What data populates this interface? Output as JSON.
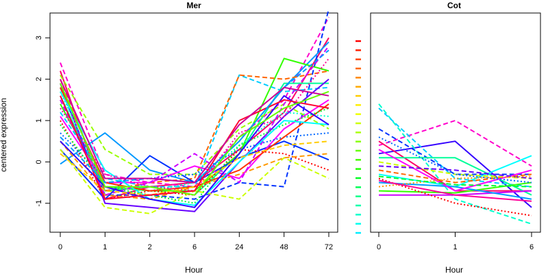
{
  "figure": {
    "ylabel": "centered expression",
    "line_styles": [
      "solid",
      "dashed",
      "dotted"
    ]
  },
  "chart_data": [
    {
      "type": "line",
      "title": "Mer",
      "xlabel": "Hour",
      "ylabel": "centered expression",
      "categories": [
        "0",
        "1",
        "2",
        "6",
        "24",
        "48",
        "72"
      ],
      "ylim": [
        -1.7,
        3.6
      ],
      "yticks": [
        -1,
        0,
        1,
        2,
        3
      ],
      "grid": false,
      "legend": "none",
      "series": [
        {
          "color": "#ff0066",
          "style": "solid",
          "values": [
            2.2,
            -0.9,
            -0.6,
            -0.5,
            0.3,
            1.2,
            3.0
          ]
        },
        {
          "color": "#ff00cc",
          "style": "dashed",
          "values": [
            2.4,
            -0.3,
            -0.5,
            -0.6,
            0.6,
            1.5,
            3.5
          ]
        },
        {
          "color": "#0033ff",
          "style": "dashed",
          "values": [
            1.8,
            -0.8,
            -0.8,
            -0.9,
            -0.5,
            -0.6,
            3.7
          ]
        },
        {
          "color": "#00ff99",
          "style": "solid",
          "values": [
            1.6,
            -0.7,
            -0.6,
            -0.8,
            0.2,
            1.9,
            1.9
          ]
        },
        {
          "color": "#0099ff",
          "style": "solid",
          "values": [
            -0.05,
            0.7,
            -0.2,
            -0.5,
            0.5,
            1.8,
            2.9
          ]
        },
        {
          "color": "#33ff00",
          "style": "solid",
          "values": [
            1.4,
            -0.6,
            -0.7,
            -0.7,
            0.2,
            2.5,
            2.2
          ]
        },
        {
          "color": "#00ccff",
          "style": "dashed",
          "values": [
            1.2,
            -0.4,
            -0.6,
            -0.6,
            2.1,
            1.7,
            1.8
          ]
        },
        {
          "color": "#ff6600",
          "style": "dashed",
          "values": [
            2.0,
            -0.7,
            -0.5,
            -0.4,
            2.1,
            2.0,
            2.2
          ]
        },
        {
          "color": "#0033ff",
          "style": "solid",
          "values": [
            0.3,
            -0.9,
            0.15,
            -0.5,
            0.1,
            0.5,
            0.05
          ]
        },
        {
          "color": "#6600ff",
          "style": "solid",
          "values": [
            1.9,
            -1.0,
            -1.1,
            -1.2,
            0.0,
            1.1,
            2.0
          ]
        },
        {
          "color": "#ff0000",
          "style": "dotted",
          "values": [
            1.0,
            -0.9,
            -0.7,
            -0.8,
            0.3,
            0.2,
            -0.2
          ]
        },
        {
          "color": "#ccff00",
          "style": "dashed",
          "values": [
            0.3,
            -1.1,
            -1.25,
            -0.7,
            -0.9,
            0.1,
            -0.4
          ]
        },
        {
          "color": "#ff9900",
          "style": "dashed",
          "values": [
            0.5,
            -0.8,
            -0.9,
            -0.6,
            -0.3,
            0.1,
            0.2
          ]
        },
        {
          "color": "#00ffcc",
          "style": "dotted",
          "values": [
            1.7,
            -0.6,
            -0.7,
            -0.5,
            0.4,
            1.2,
            1.1
          ]
        },
        {
          "color": "#99ff00",
          "style": "dashed",
          "values": [
            2.1,
            0.3,
            -0.3,
            -0.3,
            0.8,
            1.4,
            0.8
          ]
        },
        {
          "color": "#ff00ff",
          "style": "solid",
          "values": [
            1.1,
            -0.5,
            -0.5,
            -0.1,
            -0.4,
            0.8,
            1.5
          ]
        },
        {
          "color": "#0066ff",
          "style": "dotted",
          "values": [
            0.7,
            -0.4,
            -0.4,
            -0.3,
            0.3,
            0.6,
            0.7
          ]
        },
        {
          "color": "#ff3300",
          "style": "solid",
          "values": [
            1.8,
            -0.5,
            -0.7,
            -0.6,
            -0.2,
            0.6,
            1.4
          ]
        },
        {
          "color": "#00ff33",
          "style": "dotted",
          "values": [
            0.9,
            -0.6,
            -0.8,
            -1.0,
            0.4,
            0.9,
            1.3
          ]
        },
        {
          "color": "#cc00ff",
          "style": "dashed",
          "values": [
            1.5,
            -0.8,
            -0.5,
            0.2,
            -0.5,
            1.4,
            2.8
          ]
        },
        {
          "color": "#00ffff",
          "style": "solid",
          "values": [
            1.7,
            -0.2,
            -0.9,
            -1.05,
            0.0,
            1.0,
            0.9
          ]
        },
        {
          "color": "#ff0099",
          "style": "dotted",
          "values": [
            1.3,
            -0.3,
            -0.6,
            -0.7,
            0.7,
            1.1,
            2.5
          ]
        },
        {
          "color": "#3300ff",
          "style": "solid",
          "values": [
            0.5,
            -0.6,
            -0.9,
            -1.1,
            0.2,
            1.6,
            0.9
          ]
        },
        {
          "color": "#ffcc00",
          "style": "dashed",
          "values": [
            0.2,
            -0.7,
            -0.8,
            -0.6,
            0.1,
            0.4,
            0.5
          ]
        },
        {
          "color": "#ff0033",
          "style": "solid",
          "values": [
            1.6,
            -0.9,
            -0.8,
            -0.7,
            1.0,
            1.5,
            1.3
          ]
        },
        {
          "color": "#0099ff",
          "style": "dashed",
          "values": [
            0.6,
            -0.5,
            -0.4,
            -0.5,
            0.5,
            1.8,
            2.7
          ]
        },
        {
          "color": "#66ff00",
          "style": "solid",
          "values": [
            1.9,
            -0.6,
            -0.6,
            -0.8,
            0.6,
            1.3,
            1.7
          ]
        },
        {
          "color": "#cc0099",
          "style": "solid",
          "values": [
            2.0,
            -0.4,
            -0.4,
            -0.5,
            0.9,
            1.8,
            1.6
          ]
        }
      ]
    },
    {
      "type": "line",
      "title": "Cot",
      "xlabel": "Hour",
      "ylabel": "",
      "categories": [
        "0",
        "1",
        "6"
      ],
      "ylim": [
        -1.7,
        3.6
      ],
      "yticks": [],
      "grid": false,
      "legend": "none",
      "series": [
        {
          "color": "#ff00cc",
          "style": "dashed",
          "values": [
            0.4,
            1.0,
            -0.1
          ]
        },
        {
          "color": "#3300ff",
          "style": "solid",
          "values": [
            0.2,
            0.5,
            -1.1
          ]
        },
        {
          "color": "#00ffcc",
          "style": "dashed",
          "values": [
            1.4,
            -0.9,
            -1.5
          ]
        },
        {
          "color": "#00ccff",
          "style": "dashed",
          "values": [
            1.3,
            -0.4,
            -0.6
          ]
        },
        {
          "color": "#0033ff",
          "style": "dashed",
          "values": [
            0.8,
            -0.3,
            -0.3
          ]
        },
        {
          "color": "#ff0066",
          "style": "solid",
          "values": [
            0.5,
            -0.7,
            -0.7
          ]
        },
        {
          "color": "#00ff99",
          "style": "solid",
          "values": [
            0.1,
            0.1,
            -0.8
          ]
        },
        {
          "color": "#33ff00",
          "style": "solid",
          "values": [
            -0.7,
            -0.75,
            -0.5
          ]
        },
        {
          "color": "#00ffff",
          "style": "solid",
          "values": [
            -0.3,
            -0.6,
            0.15
          ]
        },
        {
          "color": "#ff6600",
          "style": "dashed",
          "values": [
            -0.2,
            -0.5,
            -0.3
          ]
        },
        {
          "color": "#cc00ff",
          "style": "solid",
          "values": [
            -0.8,
            -0.8,
            -0.7
          ]
        },
        {
          "color": "#ff0000",
          "style": "dotted",
          "values": [
            -0.4,
            -1.0,
            -1.3
          ]
        },
        {
          "color": "#ccff00",
          "style": "dashed",
          "values": [
            0.0,
            -0.3,
            -0.4
          ]
        },
        {
          "color": "#0099ff",
          "style": "solid",
          "values": [
            -0.5,
            -0.6,
            -0.9
          ]
        },
        {
          "color": "#ff00ff",
          "style": "solid",
          "values": [
            0.3,
            -0.7,
            -0.2
          ]
        },
        {
          "color": "#6600ff",
          "style": "dashed",
          "values": [
            -0.1,
            -0.2,
            -0.4
          ]
        },
        {
          "color": "#ff9900",
          "style": "dotted",
          "values": [
            -0.6,
            -0.4,
            -0.35
          ]
        },
        {
          "color": "#00ff33",
          "style": "dashed",
          "values": [
            -0.35,
            -0.55,
            -0.6
          ]
        },
        {
          "color": "#ff0099",
          "style": "solid",
          "values": [
            -0.45,
            -0.8,
            -0.95
          ]
        },
        {
          "color": "#0066ff",
          "style": "dotted",
          "values": [
            0.6,
            -0.3,
            -0.5
          ]
        }
      ]
    }
  ],
  "color_key": {
    "colors": [
      "#ff0000",
      "#ff2200",
      "#ff4400",
      "#ff6600",
      "#ff8800",
      "#ffaa00",
      "#ffcc00",
      "#ffee00",
      "#eeff00",
      "#ccff00",
      "#aaff00",
      "#88ff00",
      "#66ff00",
      "#44ff00",
      "#22ff00",
      "#00ff22",
      "#00ff55",
      "#00ff88",
      "#00ffaa",
      "#00ffcc",
      "#00ffee",
      "#00eeff"
    ]
  }
}
